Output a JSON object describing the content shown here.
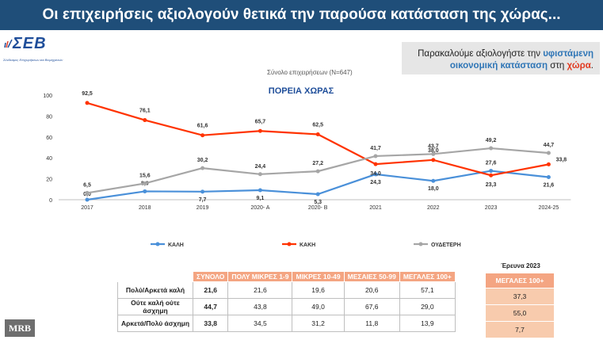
{
  "header": {
    "title": "Οι επιχειρήσεις αξιολογούν θετικά την παρούσα κατάσταση της χώρας..."
  },
  "logo": {
    "name": "ΣΕΒ",
    "subtitle": "Σύνδεσμος Επιχειρήσεων και Βιομηχανιών"
  },
  "note": {
    "part1": "Παρακαλούμε αξιολογήστε την ",
    "highlight1": "υφιστάμενη οικονομική κατάσταση",
    "part2": " στη ",
    "highlight2": "χώρα",
    "part3": "."
  },
  "sample": "Σύνολο επιχειρήσεων (N=647)",
  "mrb": "MRB",
  "colors": {
    "kali": "#4a90d9",
    "kaki": "#ff3300",
    "oudeteri": "#a6a6a6",
    "banner": "#1f4e79",
    "table_header": "#f4a582"
  },
  "chart_data": {
    "type": "line",
    "title": "ΠΟΡΕΙΑ ΧΩΡΑΣ",
    "categories": [
      "2017",
      "2018",
      "2019",
      "2020- A",
      "2020- B",
      "2021",
      "2022",
      "2023",
      "2024-25"
    ],
    "ylim": [
      0,
      100
    ],
    "yticks": [
      0,
      20,
      40,
      60,
      80,
      100
    ],
    "grid": false,
    "legend_position": "bottom",
    "series": [
      {
        "name": "ΚΑΛΗ",
        "values": [
          0.0,
          8.0,
          7.7,
          9.1,
          5.3,
          24.3,
          18.0,
          27.6,
          21.6
        ],
        "labels": [
          "0,0",
          "8,0",
          "7,7",
          "9,1",
          "5,3",
          "24,3",
          "18,0",
          "27,6",
          "21,6"
        ]
      },
      {
        "name": "ΚΑΚΗ",
        "values": [
          92.5,
          76.1,
          61.6,
          65.7,
          62.5,
          34.0,
          38.0,
          23.3,
          33.8
        ],
        "labels": [
          "92,5",
          "76,1",
          "61,6",
          "65,7",
          "62,5",
          "34,0",
          "38,0",
          "23,3",
          "33,8"
        ]
      },
      {
        "name": "ΟΥΔΕΤΕΡΗ",
        "values": [
          6.5,
          15.6,
          30.2,
          24.4,
          27.2,
          41.7,
          43.7,
          49.2,
          44.7
        ],
        "labels": [
          "6,5",
          "15,6",
          "30,2",
          "24,4",
          "27,2",
          "41,7",
          "43,7",
          "49,2",
          "44,7"
        ]
      }
    ]
  },
  "table": {
    "headers": [
      "",
      "ΣΥΝΟΛΟ",
      "ΠΟΛΥ ΜΙΚΡΕΣ 1-9",
      "ΜΙΚΡΕΣ 10-49",
      "ΜΕΣΑΙΕΣ 50-99",
      "ΜΕΓΑΛΕΣ 100+"
    ],
    "rows": [
      {
        "label": "Πολύ/Αρκετά καλή",
        "values": [
          "21,6",
          "21,6",
          "19,6",
          "20,6",
          "57,1"
        ]
      },
      {
        "label": "Ούτε καλή ούτε άσχημη",
        "values": [
          "44,7",
          "43,8",
          "49,0",
          "67,6",
          "29,0"
        ]
      },
      {
        "label": "Αρκετά/Πολύ άσχημη",
        "values": [
          "33,8",
          "34,5",
          "31,2",
          "11,8",
          "13,9"
        ]
      }
    ]
  },
  "survey2023": {
    "title": "Έρευνα 2023",
    "header": "ΜΕΓΑΛΕΣ 100+",
    "values": [
      "37,3",
      "55,0",
      "7,7"
    ]
  }
}
